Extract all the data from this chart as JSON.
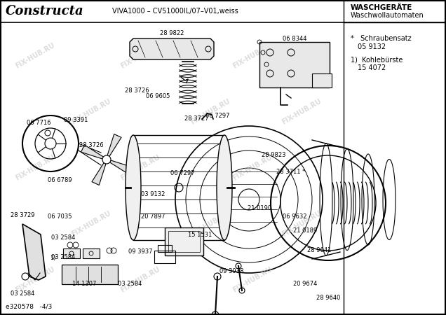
{
  "title_brand": "Constructa",
  "title_model": "VIVA1000 – CV51000IL/07–V01,weiss",
  "title_right_top": "WASCHGERÄTE",
  "title_right_sub": "Waschwollautomaten",
  "bottom_left": "e320578   -4/3",
  "parts_list_1_marker": "*",
  "parts_list_1_name": "Schraubensatz",
  "parts_list_1_num": "05 9132",
  "parts_list_2_marker": "1)",
  "parts_list_2_name": "Kohlebürste",
  "parts_list_2_num": "15 4072",
  "bg_color": "#ffffff",
  "watermark": "FIX-HUB.RU"
}
